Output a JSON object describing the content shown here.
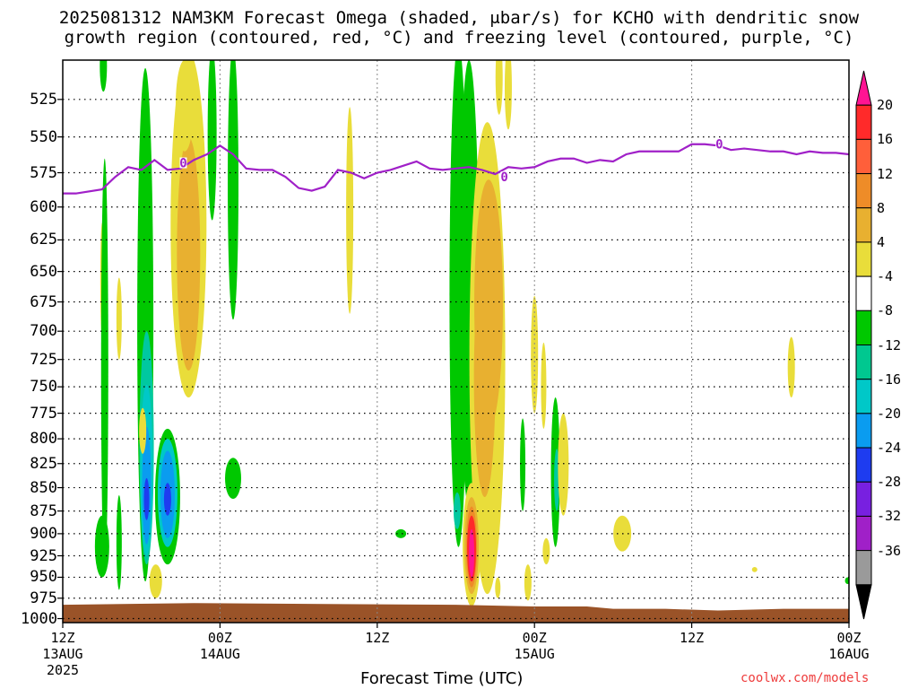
{
  "title_line1": "2025081312 NAM3KM Forecast Omega (shaded, μbar/s) for KCHO with dendritic snow",
  "title_line2": "growth region (contoured, red, °C) and freezing level (contoured, purple, °C)",
  "credit": "coolwx.com/models",
  "chart_data": {
    "type": "heatmap",
    "title": "2025081312 NAM3KM Forecast Omega (shaded, μbar/s) for KCHO with dendritic snow growth region (contoured, red, °C) and freezing level (contoured, purple, °C)",
    "xlabel": "Forecast Time (UTC)",
    "ylabel": "",
    "x_ticks": [
      {
        "hour": 0,
        "line1": "12Z",
        "line2": "13AUG",
        "line3": "2025"
      },
      {
        "hour": 12,
        "line1": "00Z",
        "line2": "14AUG",
        "line3": ""
      },
      {
        "hour": 24,
        "line1": "12Z",
        "line2": "",
        "line3": ""
      },
      {
        "hour": 36,
        "line1": "00Z",
        "line2": "15AUG",
        "line3": ""
      },
      {
        "hour": 48,
        "line1": "12Z",
        "line2": "",
        "line3": ""
      },
      {
        "hour": 60,
        "line1": "00Z",
        "line2": "16AUG",
        "line3": ""
      }
    ],
    "xlim": [
      0,
      60
    ],
    "y_ticks": [
      525,
      550,
      575,
      600,
      625,
      650,
      675,
      700,
      725,
      750,
      775,
      800,
      825,
      850,
      875,
      900,
      925,
      950,
      975,
      1000
    ],
    "ylim": [
      1005,
      500
    ],
    "y_scale": "log-pressure",
    "grid": true,
    "colorbar": {
      "labels": [
        "20",
        "16",
        "12",
        "8",
        "4",
        "-4",
        "-8",
        "-12",
        "-16",
        "-20",
        "-24",
        "-28",
        "-32",
        "-36"
      ],
      "colors": [
        "#ff1493",
        "#ff2a2a",
        "#ff5f3a",
        "#ee8c28",
        "#e8b030",
        "#e9dd3a",
        "#ffffff",
        "#00c800",
        "#00c890",
        "#00c8c8",
        "#0a9cf0",
        "#1e3cf0",
        "#7820e0",
        "#a020c8",
        "#9a9a9a",
        "#000000"
      ]
    },
    "freezing_level": {
      "label": "0",
      "color": "#a020c8",
      "points": [
        [
          0,
          590
        ],
        [
          1,
          590
        ],
        [
          3,
          587
        ],
        [
          4,
          578
        ],
        [
          5,
          571
        ],
        [
          6,
          573
        ],
        [
          7,
          566
        ],
        [
          8,
          573
        ],
        [
          9,
          572
        ],
        [
          10,
          566
        ],
        [
          11,
          562
        ],
        [
          12,
          556
        ],
        [
          13,
          562
        ],
        [
          14,
          572
        ],
        [
          15,
          573
        ],
        [
          16,
          573
        ],
        [
          17,
          578
        ],
        [
          18,
          586
        ],
        [
          19,
          588
        ],
        [
          20,
          585
        ],
        [
          21,
          573
        ],
        [
          22,
          575
        ],
        [
          23,
          579
        ],
        [
          24,
          575
        ],
        [
          25,
          573
        ],
        [
          26,
          570
        ],
        [
          27,
          567
        ],
        [
          28,
          572
        ],
        [
          29,
          573
        ],
        [
          30,
          572
        ],
        [
          31,
          571
        ],
        [
          32,
          573
        ],
        [
          33,
          576
        ],
        [
          34,
          571
        ],
        [
          35,
          572
        ],
        [
          36,
          571
        ],
        [
          37,
          567
        ],
        [
          38,
          565
        ],
        [
          39,
          565
        ],
        [
          40,
          568
        ],
        [
          41,
          566
        ],
        [
          42,
          567
        ],
        [
          43,
          562
        ],
        [
          44,
          560
        ],
        [
          45,
          560
        ],
        [
          46,
          560
        ],
        [
          47,
          560
        ],
        [
          48,
          555
        ],
        [
          49,
          555
        ],
        [
          50,
          556
        ],
        [
          51,
          559
        ],
        [
          52,
          558
        ],
        [
          53,
          559
        ],
        [
          54,
          560
        ],
        [
          55,
          560
        ],
        [
          56,
          562
        ],
        [
          57,
          560
        ],
        [
          58,
          561
        ],
        [
          59,
          561
        ],
        [
          60,
          562
        ]
      ],
      "markers": [
        [
          9.2,
          568
        ],
        [
          33.7,
          578
        ],
        [
          50.1,
          555
        ]
      ]
    },
    "omega_features": [
      {
        "hour": 6.4,
        "p_top": 750,
        "p_bot": 950,
        "value": -20
      },
      {
        "hour": 8.0,
        "p_top": 810,
        "p_bot": 915,
        "value": -18
      },
      {
        "hour": 9.6,
        "p_top": 525,
        "p_bot": 745,
        "value": 9
      },
      {
        "hour": 31.2,
        "p_top": 855,
        "p_bot": 970,
        "value": 22
      },
      {
        "hour": 32.4,
        "p_top": 590,
        "p_bot": 860,
        "value": 10
      }
    ],
    "surface": {
      "label": "terrain",
      "color": "#9a5328"
    }
  }
}
